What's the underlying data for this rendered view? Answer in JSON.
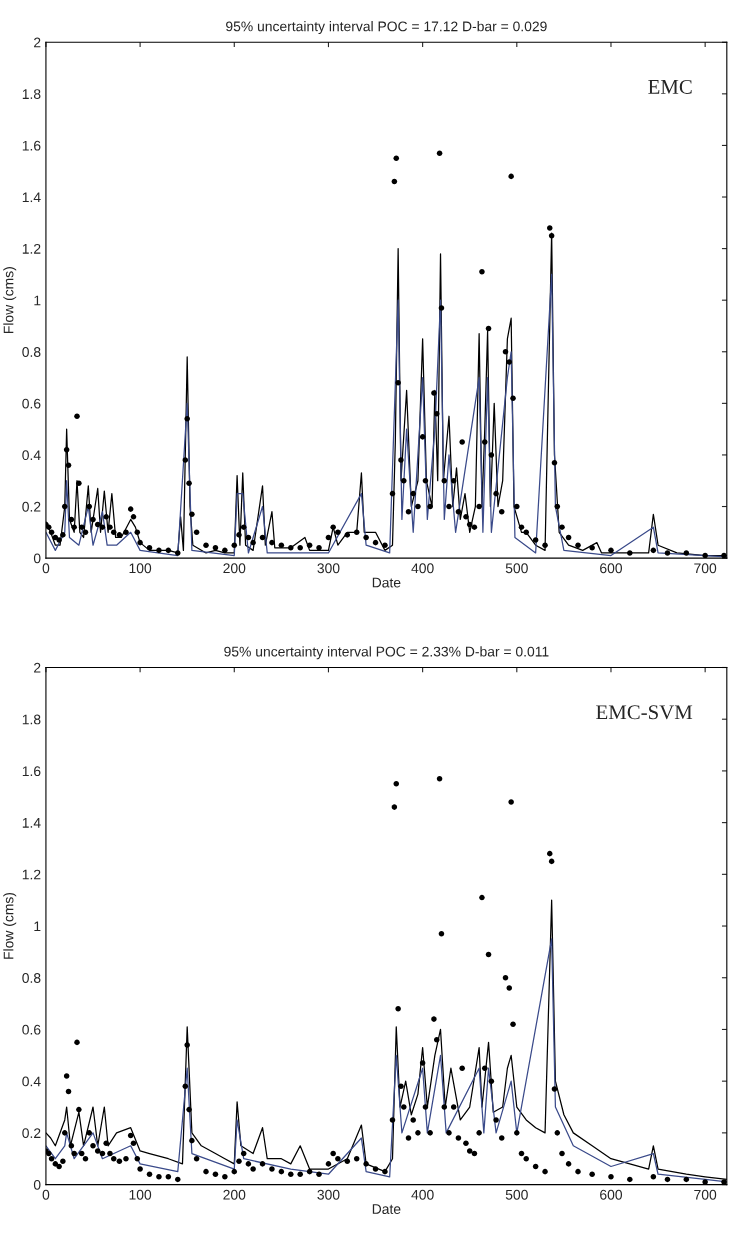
{
  "chart_data": [
    {
      "type": "line",
      "title": "95% uncertainty interval POC = 17.12 D-bar = 0.029",
      "xlabel": "Date",
      "ylabel": "Flow (cms)",
      "annotations": [
        "EMC"
      ],
      "xlim": [
        0,
        723
      ],
      "xticks": [
        0,
        100,
        200,
        300,
        400,
        500,
        600,
        700
      ],
      "ylim": [
        0,
        2
      ],
      "yticks": [
        0,
        0.2,
        0.4,
        0.6,
        0.8,
        1,
        1.2,
        1.4,
        1.6,
        1.8,
        2
      ],
      "grid": false,
      "series": [
        {
          "type": "line",
          "color": "#000000",
          "marker": "none",
          "x": [
            0,
            5,
            10,
            15,
            20,
            22,
            25,
            30,
            33,
            36,
            40,
            45,
            48,
            55,
            58,
            62,
            66,
            70,
            74,
            80,
            90,
            95,
            100,
            110,
            120,
            130,
            140,
            143,
            146,
            150,
            153,
            156,
            170,
            180,
            190,
            200,
            203,
            206,
            209,
            212,
            220,
            230,
            233,
            240,
            243,
            260,
            275,
            280,
            300,
            305,
            310,
            320,
            330,
            335,
            338,
            350,
            360,
            368,
            371,
            374,
            377,
            383,
            388,
            395,
            400,
            404,
            410,
            413,
            416,
            419,
            422,
            428,
            432,
            436,
            440,
            445,
            450,
            456,
            460,
            463,
            466,
            469,
            472,
            476,
            480,
            485,
            490,
            494,
            497,
            505,
            510,
            520,
            530,
            537,
            540,
            545,
            555,
            570,
            585,
            590,
            610,
            640,
            645,
            650,
            670,
            700,
            723
          ],
          "values": [
            0.14,
            0.1,
            0.05,
            0.05,
            0.2,
            0.5,
            0.15,
            0.1,
            0.3,
            0.1,
            0.08,
            0.28,
            0.1,
            0.27,
            0.1,
            0.26,
            0.1,
            0.25,
            0.08,
            0.08,
            0.15,
            0.12,
            0.06,
            0.03,
            0.03,
            0.03,
            0.02,
            0.16,
            0.03,
            0.78,
            0.2,
            0.05,
            0.02,
            0.03,
            0.02,
            0.02,
            0.32,
            0.05,
            0.33,
            0.05,
            0.03,
            0.28,
            0.05,
            0.18,
            0.04,
            0.04,
            0.08,
            0.03,
            0.03,
            0.12,
            0.05,
            0.1,
            0.1,
            0.33,
            0.1,
            0.1,
            0.03,
            0.05,
            0.45,
            1.2,
            0.3,
            0.65,
            0.2,
            0.3,
            0.85,
            0.3,
            0.2,
            0.65,
            0.3,
            1.18,
            0.3,
            0.55,
            0.2,
            0.35,
            0.15,
            0.25,
            0.1,
            0.2,
            0.87,
            0.2,
            0.5,
            0.88,
            0.2,
            0.6,
            0.2,
            0.3,
            0.85,
            0.93,
            0.2,
            0.1,
            0.1,
            0.05,
            0.03,
            1.26,
            0.4,
            0.1,
            0.05,
            0.03,
            0.06,
            0.02,
            0.02,
            0.02,
            0.17,
            0.05,
            0.02,
            0.01,
            0.01
          ]
        },
        {
          "type": "line",
          "color": "#3a4a8a",
          "marker": "none",
          "x": [
            0,
            10,
            20,
            22,
            25,
            35,
            45,
            50,
            60,
            65,
            75,
            90,
            100,
            140,
            150,
            155,
            200,
            203,
            209,
            215,
            230,
            235,
            300,
            335,
            340,
            365,
            374,
            378,
            383,
            390,
            400,
            405,
            413,
            419,
            423,
            428,
            435,
            460,
            464,
            469,
            473,
            490,
            494,
            498,
            520,
            537,
            541,
            550,
            600,
            645,
            650,
            723
          ],
          "values": [
            0.1,
            0.03,
            0.1,
            0.3,
            0.08,
            0.05,
            0.2,
            0.05,
            0.18,
            0.05,
            0.05,
            0.1,
            0.03,
            0.01,
            0.6,
            0.03,
            0.01,
            0.25,
            0.25,
            0.02,
            0.2,
            0.02,
            0.02,
            0.25,
            0.05,
            0.02,
            1.0,
            0.15,
            0.5,
            0.1,
            0.7,
            0.15,
            0.5,
            1.0,
            0.15,
            0.4,
            0.1,
            0.7,
            0.1,
            0.7,
            0.1,
            0.7,
            0.8,
            0.08,
            0.02,
            1.1,
            0.2,
            0.03,
            0.01,
            0.12,
            0.02,
            0.005
          ]
        },
        {
          "type": "scatter",
          "color": "#000000",
          "marker": "circle",
          "x": [
            0,
            3,
            6,
            10,
            14,
            18,
            20,
            22,
            24,
            27,
            30,
            33,
            35,
            38,
            42,
            46,
            50,
            55,
            60,
            64,
            68,
            72,
            78,
            85,
            90,
            93,
            97,
            100,
            110,
            120,
            130,
            140,
            148,
            150,
            152,
            155,
            160,
            170,
            180,
            190,
            200,
            205,
            210,
            215,
            220,
            230,
            240,
            250,
            260,
            270,
            280,
            290,
            300,
            305,
            310,
            320,
            330,
            340,
            350,
            360,
            368,
            370,
            372,
            374,
            377,
            380,
            385,
            390,
            395,
            400,
            403,
            408,
            412,
            415,
            418,
            420,
            423,
            428,
            433,
            438,
            442,
            446,
            450,
            455,
            460,
            463,
            466,
            470,
            473,
            478,
            484,
            488,
            492,
            494,
            496,
            500,
            505,
            510,
            520,
            530,
            535,
            537,
            540,
            543,
            548,
            555,
            565,
            580,
            600,
            620,
            645,
            660,
            680,
            700,
            720
          ],
          "values": [
            0.13,
            0.12,
            0.1,
            0.08,
            0.07,
            0.09,
            0.2,
            0.42,
            0.36,
            0.15,
            0.12,
            0.55,
            0.29,
            0.12,
            0.1,
            0.2,
            0.15,
            0.13,
            0.12,
            0.16,
            0.12,
            0.1,
            0.09,
            0.1,
            0.19,
            0.16,
            0.1,
            0.06,
            0.04,
            0.03,
            0.03,
            0.02,
            0.38,
            0.54,
            0.29,
            0.17,
            0.1,
            0.05,
            0.04,
            0.03,
            0.05,
            0.09,
            0.12,
            0.08,
            0.06,
            0.08,
            0.06,
            0.05,
            0.04,
            0.04,
            0.05,
            0.04,
            0.08,
            0.12,
            0.1,
            0.09,
            0.1,
            0.08,
            0.06,
            0.05,
            0.25,
            1.46,
            1.55,
            0.68,
            0.38,
            0.3,
            0.18,
            0.25,
            0.2,
            0.47,
            0.3,
            0.2,
            0.64,
            0.56,
            1.57,
            0.97,
            0.3,
            0.2,
            0.3,
            0.18,
            0.45,
            0.16,
            0.13,
            0.12,
            0.2,
            1.11,
            0.45,
            0.89,
            0.4,
            0.25,
            0.18,
            0.8,
            0.76,
            1.48,
            0.62,
            0.2,
            0.12,
            0.1,
            0.07,
            0.05,
            1.28,
            1.25,
            0.37,
            0.2,
            0.12,
            0.08,
            0.05,
            0.04,
            0.03,
            0.02,
            0.03,
            0.02,
            0.02,
            0.01,
            0.01
          ]
        }
      ]
    },
    {
      "type": "line",
      "title": "95% uncertainty interval POC = 2.33% D-bar = 0.011",
      "xlabel": "Date",
      "ylabel": "Flow (cms)",
      "annotations": [
        "EMC-SVM"
      ],
      "xlim": [
        0,
        723
      ],
      "xticks": [
        0,
        100,
        200,
        300,
        400,
        500,
        600,
        700
      ],
      "ylim": [
        0,
        2
      ],
      "yticks": [
        0,
        0.2,
        0.4,
        0.6,
        0.8,
        1,
        1.2,
        1.4,
        1.6,
        1.8,
        2
      ],
      "grid": false,
      "series": [
        {
          "type": "line",
          "color": "#000000",
          "marker": "none",
          "x": [
            0,
            5,
            10,
            20,
            22,
            26,
            35,
            40,
            50,
            55,
            62,
            66,
            75,
            90,
            100,
            110,
            130,
            145,
            150,
            155,
            165,
            180,
            190,
            200,
            203,
            207,
            220,
            230,
            235,
            250,
            260,
            270,
            280,
            300,
            320,
            335,
            340,
            360,
            368,
            372,
            376,
            382,
            388,
            395,
            400,
            405,
            413,
            419,
            424,
            430,
            440,
            450,
            460,
            463,
            470,
            475,
            485,
            490,
            494,
            500,
            510,
            520,
            530,
            537,
            541,
            550,
            560,
            580,
            600,
            620,
            640,
            645,
            650,
            680,
            700,
            723
          ],
          "values": [
            0.2,
            0.18,
            0.15,
            0.25,
            0.3,
            0.15,
            0.28,
            0.15,
            0.3,
            0.15,
            0.3,
            0.15,
            0.2,
            0.22,
            0.13,
            0.12,
            0.1,
            0.08,
            0.61,
            0.2,
            0.15,
            0.12,
            0.1,
            0.08,
            0.32,
            0.15,
            0.12,
            0.22,
            0.1,
            0.1,
            0.08,
            0.15,
            0.06,
            0.06,
            0.1,
            0.23,
            0.08,
            0.05,
            0.1,
            0.61,
            0.3,
            0.4,
            0.27,
            0.35,
            0.53,
            0.3,
            0.5,
            0.6,
            0.3,
            0.45,
            0.25,
            0.3,
            0.53,
            0.3,
            0.55,
            0.28,
            0.3,
            0.45,
            0.5,
            0.3,
            0.25,
            0.22,
            0.2,
            1.1,
            0.4,
            0.27,
            0.2,
            0.15,
            0.1,
            0.08,
            0.06,
            0.15,
            0.06,
            0.04,
            0.03,
            0.02
          ]
        },
        {
          "type": "line",
          "color": "#3a4a8a",
          "marker": "none",
          "x": [
            0,
            10,
            20,
            22,
            30,
            50,
            60,
            90,
            100,
            140,
            150,
            155,
            200,
            203,
            210,
            260,
            300,
            335,
            340,
            365,
            372,
            378,
            400,
            405,
            419,
            425,
            460,
            465,
            470,
            478,
            494,
            500,
            537,
            541,
            560,
            600,
            645,
            650,
            700,
            723
          ],
          "values": [
            0.15,
            0.1,
            0.15,
            0.2,
            0.1,
            0.2,
            0.1,
            0.15,
            0.08,
            0.05,
            0.45,
            0.12,
            0.06,
            0.25,
            0.1,
            0.06,
            0.04,
            0.18,
            0.05,
            0.03,
            0.5,
            0.2,
            0.45,
            0.2,
            0.5,
            0.2,
            0.45,
            0.2,
            0.45,
            0.2,
            0.4,
            0.2,
            0.95,
            0.3,
            0.15,
            0.07,
            0.12,
            0.04,
            0.02,
            0.01
          ]
        },
        {
          "type": "scatter",
          "color": "#000000",
          "marker": "circle",
          "x": [
            0,
            3,
            6,
            10,
            14,
            18,
            20,
            22,
            24,
            27,
            30,
            33,
            35,
            38,
            42,
            46,
            50,
            55,
            60,
            64,
            68,
            72,
            78,
            85,
            90,
            93,
            97,
            100,
            110,
            120,
            130,
            140,
            148,
            150,
            152,
            155,
            160,
            170,
            180,
            190,
            200,
            205,
            210,
            215,
            220,
            230,
            240,
            250,
            260,
            270,
            280,
            290,
            300,
            305,
            310,
            320,
            330,
            340,
            350,
            360,
            368,
            370,
            372,
            374,
            377,
            380,
            385,
            390,
            395,
            400,
            403,
            408,
            412,
            415,
            418,
            420,
            423,
            428,
            433,
            438,
            442,
            446,
            450,
            455,
            460,
            463,
            466,
            470,
            473,
            478,
            484,
            488,
            492,
            494,
            496,
            500,
            505,
            510,
            520,
            530,
            535,
            537,
            540,
            543,
            548,
            555,
            565,
            580,
            600,
            620,
            645,
            660,
            680,
            700,
            720
          ],
          "values": [
            0.13,
            0.12,
            0.1,
            0.08,
            0.07,
            0.09,
            0.2,
            0.42,
            0.36,
            0.15,
            0.12,
            0.55,
            0.29,
            0.12,
            0.1,
            0.2,
            0.15,
            0.13,
            0.12,
            0.16,
            0.12,
            0.1,
            0.09,
            0.1,
            0.19,
            0.16,
            0.1,
            0.06,
            0.04,
            0.03,
            0.03,
            0.02,
            0.38,
            0.54,
            0.29,
            0.17,
            0.1,
            0.05,
            0.04,
            0.03,
            0.05,
            0.09,
            0.12,
            0.08,
            0.06,
            0.08,
            0.06,
            0.05,
            0.04,
            0.04,
            0.05,
            0.04,
            0.08,
            0.12,
            0.1,
            0.09,
            0.1,
            0.08,
            0.06,
            0.05,
            0.25,
            1.46,
            1.55,
            0.68,
            0.38,
            0.3,
            0.18,
            0.25,
            0.2,
            0.47,
            0.3,
            0.2,
            0.64,
            0.56,
            1.57,
            0.97,
            0.3,
            0.2,
            0.3,
            0.18,
            0.45,
            0.16,
            0.13,
            0.12,
            0.2,
            1.11,
            0.45,
            0.89,
            0.4,
            0.25,
            0.18,
            0.8,
            0.76,
            1.48,
            0.62,
            0.2,
            0.12,
            0.1,
            0.07,
            0.05,
            1.28,
            1.25,
            0.37,
            0.2,
            0.12,
            0.08,
            0.05,
            0.04,
            0.03,
            0.02,
            0.03,
            0.02,
            0.02,
            0.01,
            0.01
          ]
        }
      ]
    }
  ]
}
